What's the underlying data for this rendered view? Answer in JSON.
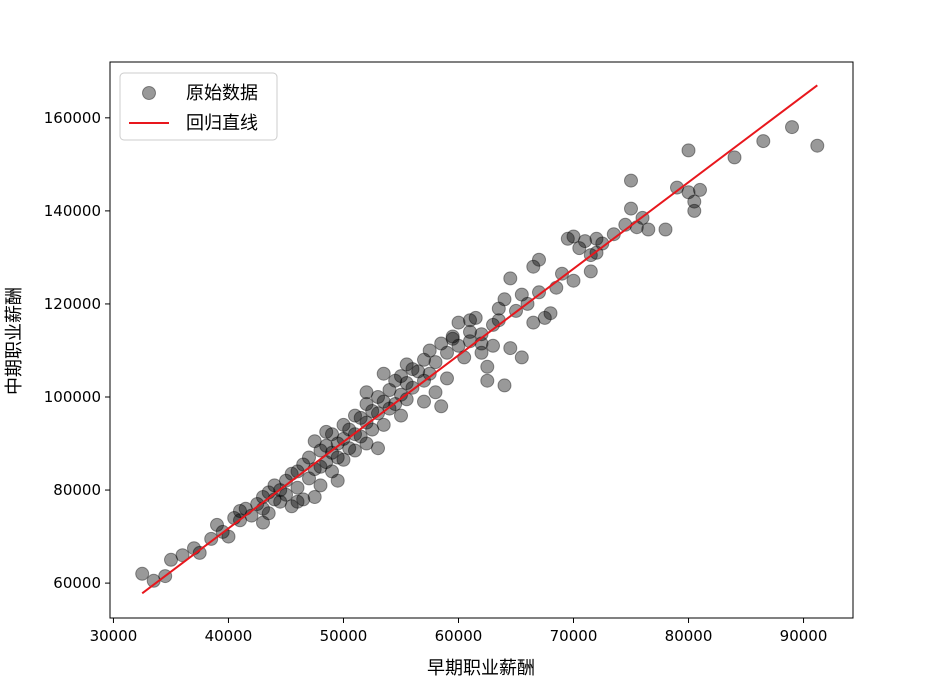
{
  "chart_data": {
    "type": "scatter",
    "xlabel": "早期职业薪酬",
    "ylabel": "中期职业薪酬",
    "xlim": [
      29700,
      94300
    ],
    "ylim": [
      52500,
      172000
    ],
    "xticks": [
      30000,
      40000,
      50000,
      60000,
      70000,
      80000,
      90000
    ],
    "yticks": [
      60000,
      80000,
      100000,
      120000,
      140000,
      160000
    ],
    "xtick_labels": [
      "30000",
      "40000",
      "50000",
      "60000",
      "70000",
      "80000",
      "90000"
    ],
    "ytick_labels": [
      "60000",
      "80000",
      "100000",
      "120000",
      "140000",
      "160000"
    ],
    "grid": false,
    "legend_position": "upper-left",
    "series": [
      {
        "name": "原始数据",
        "kind": "scatter",
        "color": "#000000",
        "opacity": 0.4,
        "points": [
          [
            32500,
            62000
          ],
          [
            33500,
            60500
          ],
          [
            34500,
            61500
          ],
          [
            35000,
            65000
          ],
          [
            36000,
            66000
          ],
          [
            37000,
            67500
          ],
          [
            37500,
            66500
          ],
          [
            38500,
            69500
          ],
          [
            39000,
            72500
          ],
          [
            39500,
            71000
          ],
          [
            40000,
            70000
          ],
          [
            40500,
            74000
          ],
          [
            41000,
            75500
          ],
          [
            41500,
            76000
          ],
          [
            41000,
            73500
          ],
          [
            42000,
            74500
          ],
          [
            42500,
            77000
          ],
          [
            43000,
            78500
          ],
          [
            43000,
            76000
          ],
          [
            43500,
            79500
          ],
          [
            43500,
            75000
          ],
          [
            44000,
            78000
          ],
          [
            44000,
            81000
          ],
          [
            44500,
            80000
          ],
          [
            44500,
            77500
          ],
          [
            45000,
            82000
          ],
          [
            45000,
            79000
          ],
          [
            45500,
            83500
          ],
          [
            45500,
            76500
          ],
          [
            46000,
            84000
          ],
          [
            46000,
            80500
          ],
          [
            46500,
            85500
          ],
          [
            46500,
            78000
          ],
          [
            47000,
            87000
          ],
          [
            47000,
            82500
          ],
          [
            47500,
            90500
          ],
          [
            47500,
            84500
          ],
          [
            47500,
            78500
          ],
          [
            48000,
            88500
          ],
          [
            48000,
            85000
          ],
          [
            48000,
            81000
          ],
          [
            48500,
            89500
          ],
          [
            48500,
            86000
          ],
          [
            49000,
            92000
          ],
          [
            49000,
            88000
          ],
          [
            49000,
            84000
          ],
          [
            49500,
            90000
          ],
          [
            49500,
            87000
          ],
          [
            50000,
            94000
          ],
          [
            50000,
            91000
          ],
          [
            50000,
            86500
          ],
          [
            50500,
            93000
          ],
          [
            50500,
            89000
          ],
          [
            51000,
            96000
          ],
          [
            51000,
            92000
          ],
          [
            51000,
            88500
          ],
          [
            51500,
            95500
          ],
          [
            51500,
            91500
          ],
          [
            52000,
            98500
          ],
          [
            52000,
            94500
          ],
          [
            52000,
            90000
          ],
          [
            52500,
            97000
          ],
          [
            52500,
            93000
          ],
          [
            53000,
            100000
          ],
          [
            53000,
            96500
          ],
          [
            53500,
            105000
          ],
          [
            53500,
            99000
          ],
          [
            53500,
            94000
          ],
          [
            54000,
            101500
          ],
          [
            54000,
            97500
          ],
          [
            54500,
            103500
          ],
          [
            54500,
            98500
          ],
          [
            55000,
            104500
          ],
          [
            55000,
            100500
          ],
          [
            55000,
            96000
          ],
          [
            55500,
            103000
          ],
          [
            55500,
            99500
          ],
          [
            56000,
            106000
          ],
          [
            56000,
            102000
          ],
          [
            56500,
            105500
          ],
          [
            57000,
            108000
          ],
          [
            57000,
            103500
          ],
          [
            57500,
            110000
          ],
          [
            57500,
            105000
          ],
          [
            58000,
            107500
          ],
          [
            58000,
            101000
          ],
          [
            58500,
            111500
          ],
          [
            58500,
            98000
          ],
          [
            59000,
            109500
          ],
          [
            59000,
            104000
          ],
          [
            59500,
            113000
          ],
          [
            60000,
            116000
          ],
          [
            60000,
            111000
          ],
          [
            60500,
            108500
          ],
          [
            61000,
            114000
          ],
          [
            61000,
            112000
          ],
          [
            61500,
            117000
          ],
          [
            62000,
            113500
          ],
          [
            62000,
            109500
          ],
          [
            62500,
            103500
          ],
          [
            62500,
            106500
          ],
          [
            63000,
            115500
          ],
          [
            63000,
            111000
          ],
          [
            63500,
            119000
          ],
          [
            63500,
            116500
          ],
          [
            64000,
            102500
          ],
          [
            64000,
            121000
          ],
          [
            64500,
            110500
          ],
          [
            65000,
            118500
          ],
          [
            65500,
            122000
          ],
          [
            65500,
            108500
          ],
          [
            66000,
            120000
          ],
          [
            66500,
            116000
          ],
          [
            67000,
            122500
          ],
          [
            67000,
            129500
          ],
          [
            67500,
            117000
          ],
          [
            68000,
            118000
          ],
          [
            68500,
            123500
          ],
          [
            69000,
            126500
          ],
          [
            69500,
            134000
          ],
          [
            70000,
            125000
          ],
          [
            70000,
            134500
          ],
          [
            70500,
            132000
          ],
          [
            71000,
            133500
          ],
          [
            71500,
            127000
          ],
          [
            71500,
            130500
          ],
          [
            72000,
            134000
          ],
          [
            72500,
            133000
          ],
          [
            73500,
            135000
          ],
          [
            74500,
            137000
          ],
          [
            75000,
            146500
          ],
          [
            75000,
            140500
          ],
          [
            75500,
            136500
          ],
          [
            76000,
            138500
          ],
          [
            76500,
            136000
          ],
          [
            78000,
            136000
          ],
          [
            79000,
            145000
          ],
          [
            80000,
            153000
          ],
          [
            80000,
            144000
          ],
          [
            80500,
            142000
          ],
          [
            80500,
            140000
          ],
          [
            81000,
            144500
          ],
          [
            84000,
            151500
          ],
          [
            86500,
            155000
          ],
          [
            89000,
            158000
          ],
          [
            91200,
            154000
          ],
          [
            66500,
            128000
          ],
          [
            64500,
            125500
          ],
          [
            72000,
            131000
          ],
          [
            62000,
            111500
          ],
          [
            57000,
            99000
          ],
          [
            53000,
            89000
          ],
          [
            49500,
            82000
          ],
          [
            46000,
            77500
          ],
          [
            43000,
            73000
          ],
          [
            48500,
            92500
          ],
          [
            52000,
            101000
          ],
          [
            55500,
            107000
          ],
          [
            59500,
            112500
          ],
          [
            61000,
            116500
          ]
        ]
      },
      {
        "name": "回归直线",
        "kind": "line",
        "color": "#e8171d",
        "points": [
          [
            32500,
            57800
          ],
          [
            91200,
            167000
          ]
        ]
      }
    ]
  }
}
